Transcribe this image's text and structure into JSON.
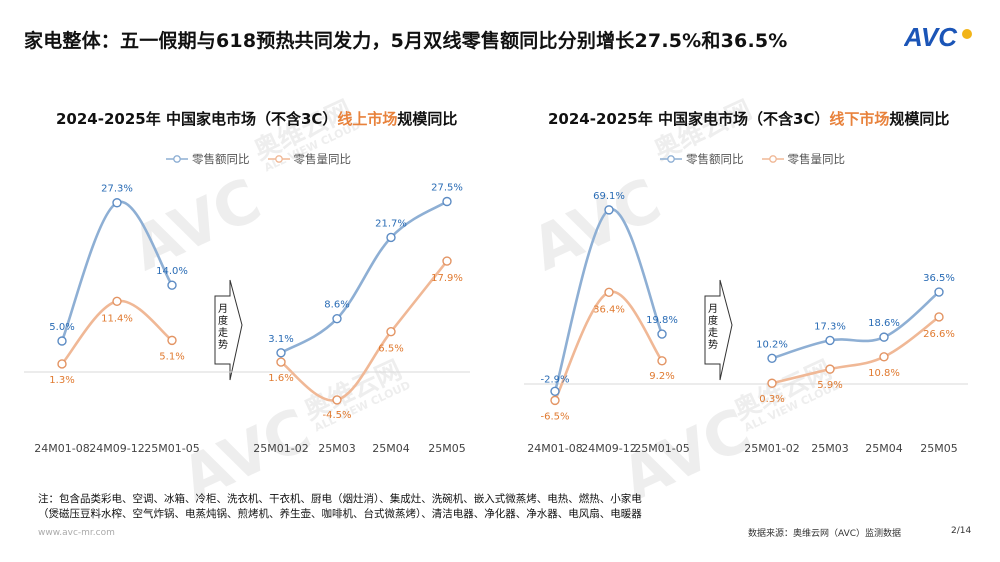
{
  "header": {
    "title": "家电整体：五一假期与618预热共同发力，5月双线零售额同比分别增长27.5%和36.5%",
    "logo_text": "AVC"
  },
  "colors": {
    "retail_amount": "#8eafd4",
    "retail_volume": "#f0b896",
    "amount_label": "#2a6cb5",
    "volume_label": "#e07a30",
    "highlight": "#e8823c"
  },
  "watermark": {
    "cn": "奥维云网",
    "en": "ALL VIEW CLOUD"
  },
  "arrow": {
    "label": "月度走势"
  },
  "chart_data": [
    {
      "type": "line",
      "title_prefix": "2024-2025年 中国家电市场（不含3C）",
      "title_highlight": "线上市场",
      "title_suffix": "规模同比",
      "legend": [
        "零售额同比",
        "零售量同比"
      ],
      "categories": [
        "24M01-08",
        "24M09-12",
        "25M01-05",
        "25M01-02",
        "25M03",
        "25M04",
        "25M05"
      ],
      "groups": [
        {
          "categories": [
            "24M01-08",
            "24M09-12",
            "25M01-05"
          ],
          "series": [
            {
              "name": "零售额同比",
              "values": [
                5.0,
                27.3,
                14.0
              ],
              "labels": [
                "5.0%",
                "27.3%",
                "14.0%"
              ]
            },
            {
              "name": "零售量同比",
              "values": [
                1.3,
                11.4,
                5.1
              ],
              "labels": [
                "1.3%",
                "11.4%",
                "5.1%"
              ]
            }
          ]
        },
        {
          "categories": [
            "25M01-02",
            "25M03",
            "25M04",
            "25M05"
          ],
          "series": [
            {
              "name": "零售额同比",
              "values": [
                3.1,
                8.6,
                21.7,
                27.5
              ],
              "labels": [
                "3.1%",
                "8.6%",
                "21.7%",
                "27.5%"
              ]
            },
            {
              "name": "零售量同比",
              "values": [
                1.6,
                -4.5,
                6.5,
                17.9
              ],
              "labels": [
                "1.6%",
                "-4.5%",
                "6.5%",
                "17.9%"
              ]
            }
          ]
        }
      ]
    },
    {
      "type": "line",
      "title_prefix": "2024-2025年 中国家电市场（不含3C）",
      "title_highlight": "线下市场",
      "title_suffix": "规模同比",
      "legend": [
        "零售额同比",
        "零售量同比"
      ],
      "categories": [
        "24M01-08",
        "24M09-12",
        "25M01-05",
        "25M01-02",
        "25M03",
        "25M04",
        "25M05"
      ],
      "groups": [
        {
          "categories": [
            "24M01-08",
            "24M09-12",
            "25M01-05"
          ],
          "series": [
            {
              "name": "零售额同比",
              "values": [
                -2.9,
                69.1,
                19.8
              ],
              "labels": [
                "-2.9%",
                "69.1%",
                "19.8%"
              ]
            },
            {
              "name": "零售量同比",
              "values": [
                -6.5,
                36.4,
                9.2
              ],
              "labels": [
                "-6.5%",
                "36.4%",
                "9.2%"
              ]
            }
          ]
        },
        {
          "categories": [
            "25M01-02",
            "25M03",
            "25M04",
            "25M05"
          ],
          "series": [
            {
              "name": "零售额同比",
              "values": [
                10.2,
                17.3,
                18.6,
                36.5
              ],
              "labels": [
                "10.2%",
                "17.3%",
                "18.6%",
                "36.5%"
              ]
            },
            {
              "name": "零售量同比",
              "values": [
                0.3,
                5.9,
                10.8,
                26.6
              ],
              "labels": [
                "0.3%",
                "5.9%",
                "10.8%",
                "26.6%"
              ]
            }
          ]
        }
      ]
    }
  ],
  "footer": {
    "note_line1": "注：包含品类彩电、空调、冰箱、冷柜、洗衣机、干衣机、厨电（烟灶消）、集成灶、洗碗机、嵌入式微蒸烤、电热、燃热、小家电",
    "note_line2": "（煲磁压豆料水榨、空气炸锅、电蒸炖锅、煎烤机、养生壶、咖啡机、台式微蒸烤）、清洁电器、净化器、净水器、电风扇、电暖器",
    "url": "www.avc-mr.com",
    "source": "数据来源：奥维云网（AVC）监测数据",
    "page": "2/14"
  }
}
